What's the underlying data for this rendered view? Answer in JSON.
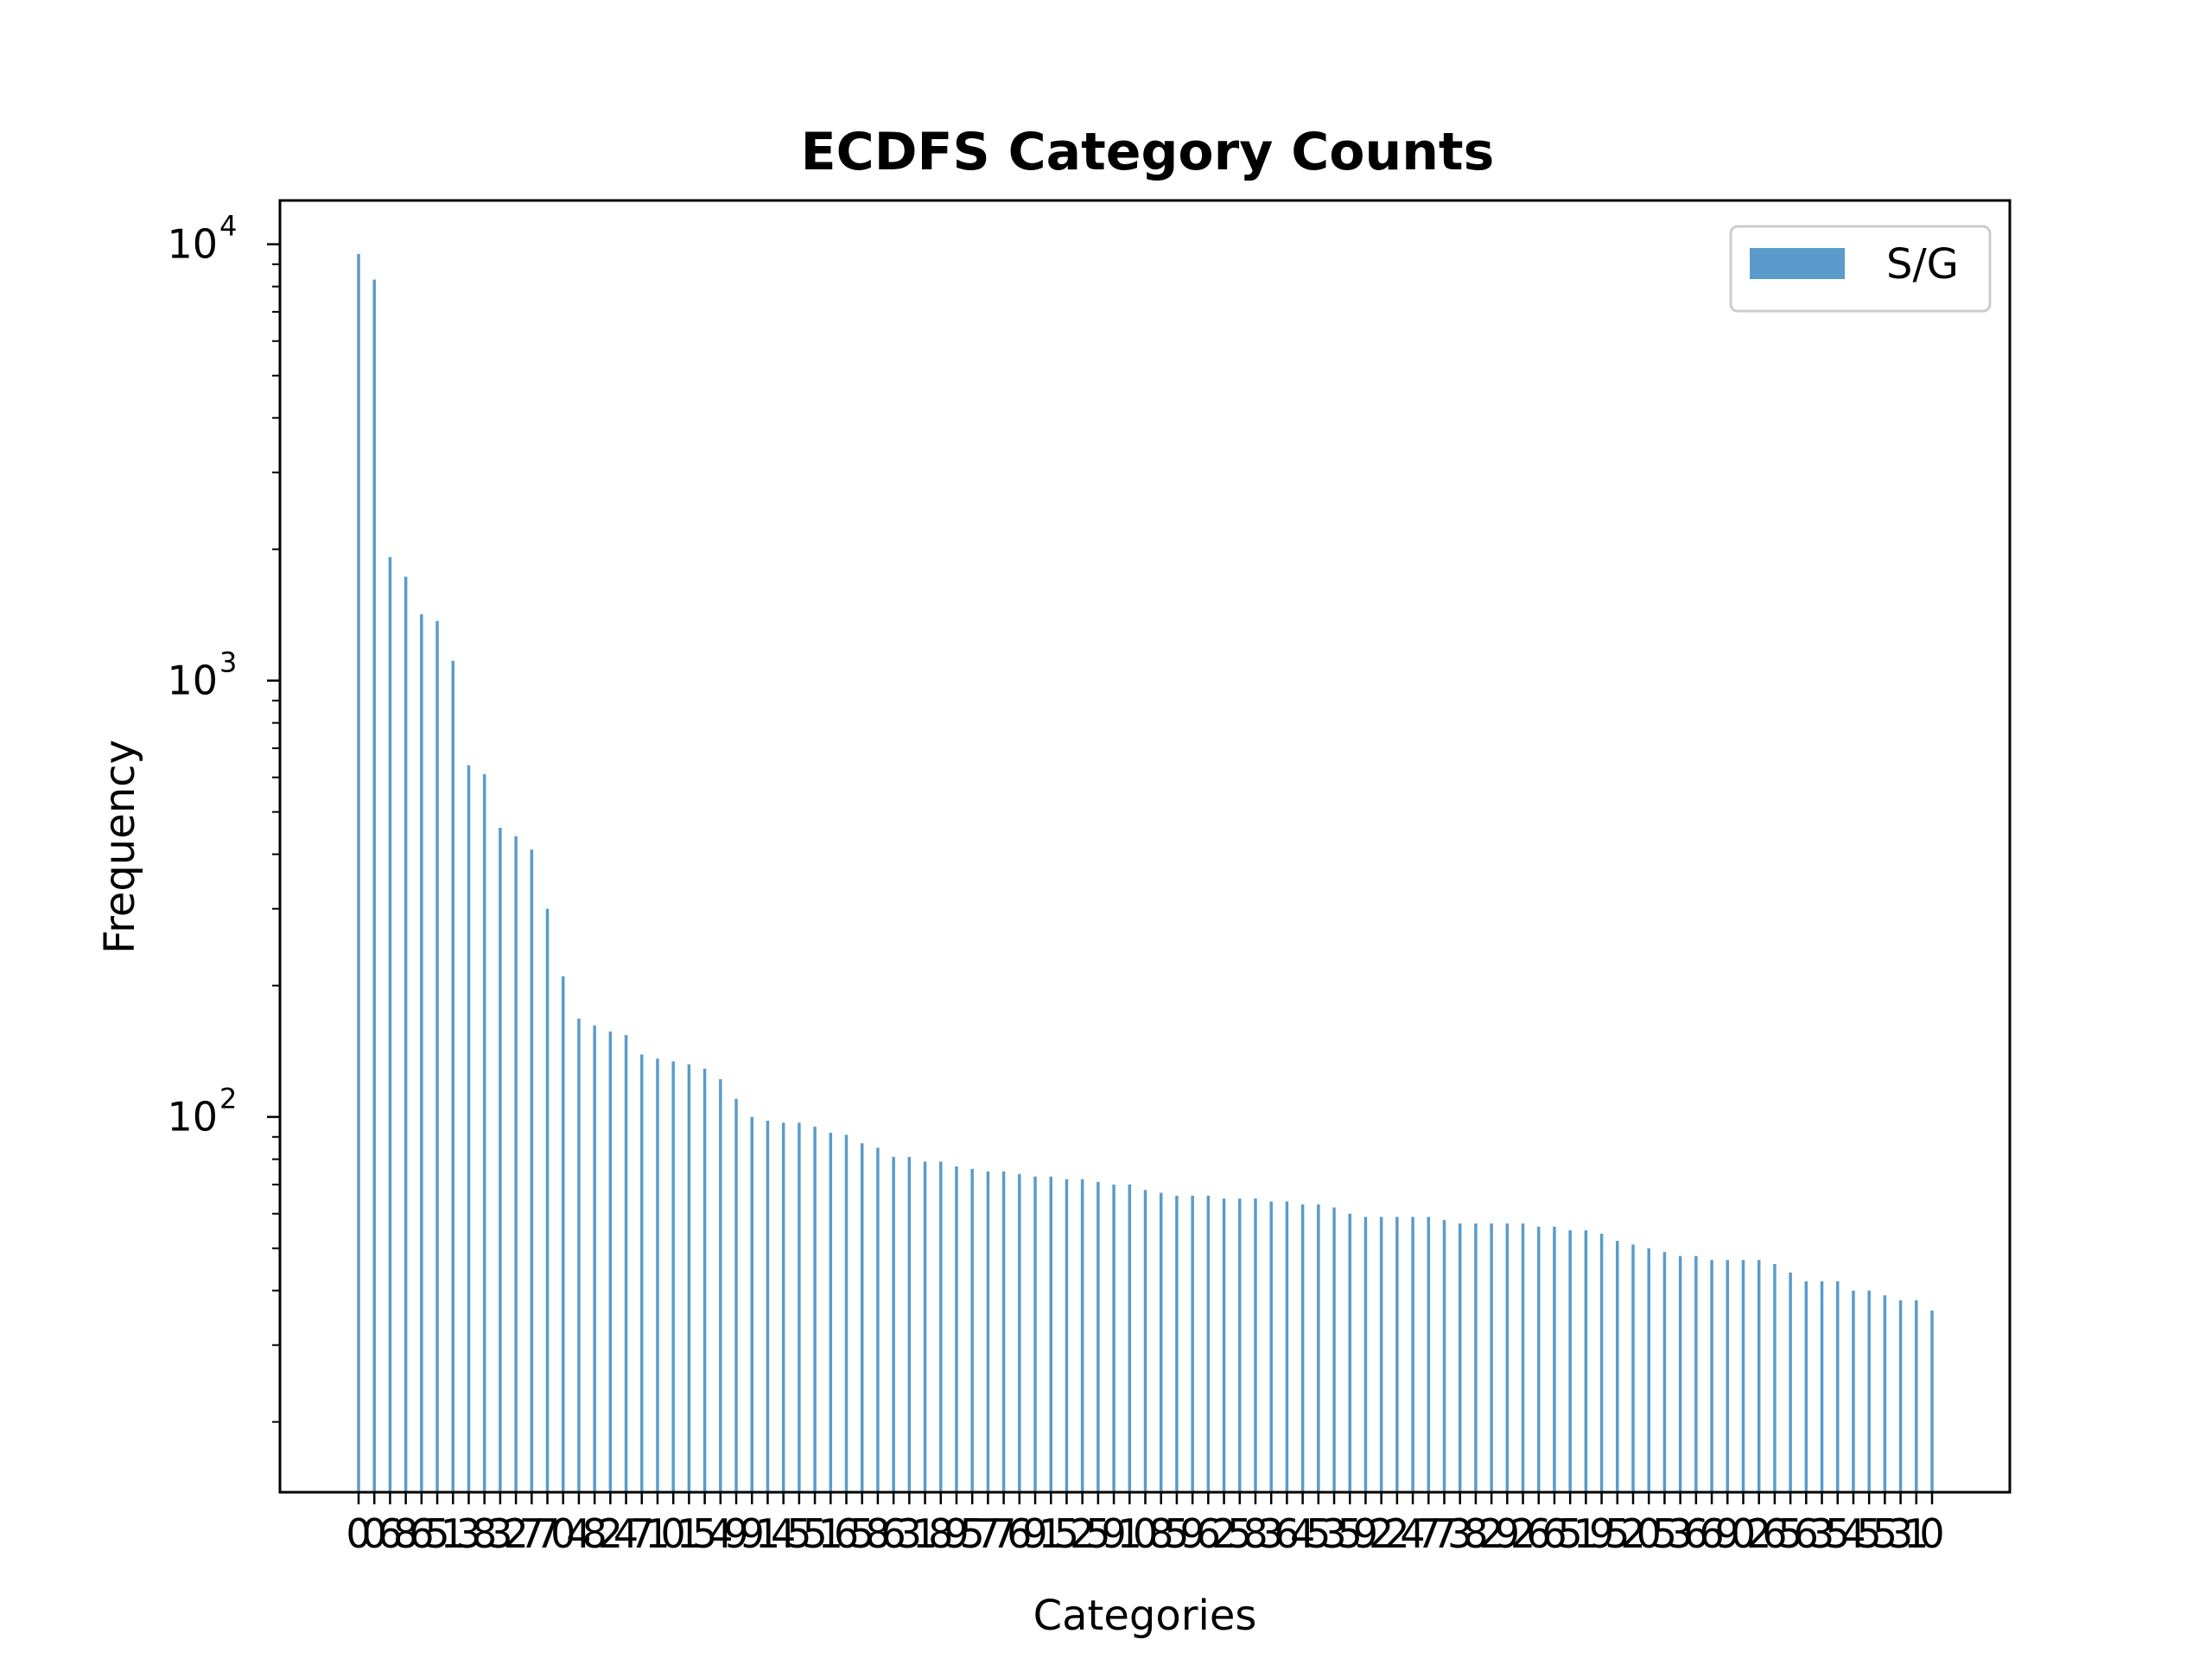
{
  "chart_data": {
    "type": "bar",
    "title": "ECDFS Category Counts",
    "xlabel": "Categories",
    "ylabel": "Frequency",
    "yscale": "log",
    "ylim": [
      13.8,
      12600
    ],
    "yticks": [
      {
        "base": "10",
        "exp": "2",
        "value": 100
      },
      {
        "base": "10",
        "exp": "3",
        "value": 1000
      },
      {
        "base": "10",
        "exp": "4",
        "value": 10000
      }
    ],
    "legend": {
      "position": "top-right"
    },
    "bar_color": "#5b9bcb",
    "grid": false,
    "categories": [
      "0",
      "0",
      "6",
      "8",
      "6",
      "5",
      "1",
      "3",
      "8",
      "3",
      "2",
      "7",
      "7",
      "0",
      "4",
      "8",
      "2",
      "4",
      "7",
      "1",
      "0",
      "1",
      "5",
      "4",
      "9",
      "9",
      "1",
      "4",
      "5",
      "5",
      "1",
      "6",
      "5",
      "8",
      "6",
      "3",
      "1",
      "8",
      "9",
      "5",
      "7",
      "7",
      "6",
      "9",
      "1",
      "5",
      "2",
      "5",
      "9",
      "1",
      "0",
      "8",
      "5",
      "9",
      "6",
      "2",
      "5",
      "8",
      "3",
      "6",
      "4",
      "5",
      "3",
      "5",
      "9",
      "2",
      "2",
      "4",
      "7",
      "7",
      "3",
      "8",
      "2",
      "9",
      "2",
      "6",
      "6",
      "5",
      "1",
      "9",
      "5",
      "2",
      "0",
      "5",
      "3",
      "6",
      "6",
      "9",
      "0",
      "2",
      "6",
      "5",
      "6",
      "3",
      "5",
      "4",
      "5",
      "5",
      "3",
      "1",
      "0"
    ],
    "series": [
      {
        "name": "S/G",
        "values": [
          9500,
          8300,
          1920,
          1730,
          1420,
          1370,
          1110,
          640,
          610,
          460,
          440,
          410,
          300,
          210,
          168,
          162,
          157,
          154,
          139,
          136,
          134,
          132,
          129,
          122,
          110,
          100,
          98,
          97,
          97,
          95,
          92,
          91,
          87,
          85,
          81,
          81,
          79,
          79,
          77,
          76,
          75,
          75,
          74,
          73,
          73,
          72,
          72,
          71,
          70,
          70,
          68,
          67,
          66,
          66,
          66,
          65,
          65,
          65,
          64,
          64,
          63,
          63,
          62,
          60,
          59,
          59,
          59,
          59,
          59,
          58,
          57,
          57,
          57,
          57,
          57,
          56,
          56,
          55,
          55,
          54,
          52,
          51,
          50,
          49,
          48,
          48,
          47,
          47,
          47,
          47,
          46,
          44,
          42,
          42,
          42,
          40,
          40,
          39,
          38,
          38,
          36
        ]
      }
    ]
  }
}
